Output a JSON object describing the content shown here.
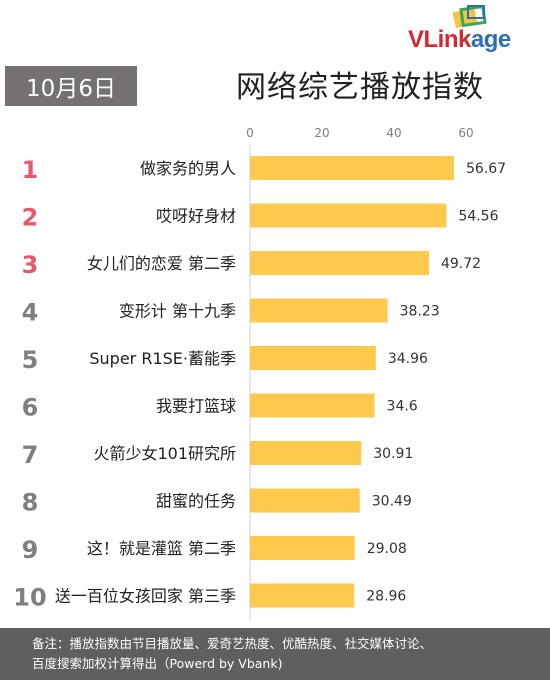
{
  "brand": {
    "part1": "VLink",
    "part2": "age",
    "colors": [
      "#d7262e",
      "#2d6fb5",
      "#f4c542",
      "#3aa655"
    ]
  },
  "date_label": "10月6日",
  "chart_data": {
    "type": "bar",
    "orientation": "horizontal",
    "title": "网络综艺播放指数",
    "ranks": [
      "1",
      "2",
      "3",
      "4",
      "5",
      "6",
      "7",
      "8",
      "9",
      "10"
    ],
    "categories": [
      "做家务的男人",
      "哎呀好身材",
      "女儿们的恋爱 第二季",
      "变形计 第十九季",
      "Super R1SE·蓄能季",
      "我要打篮球",
      "火箭少女101研究所",
      "甜蜜的任务",
      "这！就是灌篮 第二季",
      "送一百位女孩回家 第三季"
    ],
    "values": [
      56.67,
      54.56,
      49.72,
      38.23,
      34.96,
      34.6,
      30.91,
      30.49,
      29.08,
      28.96
    ],
    "value_labels": [
      "56.67",
      "54.56",
      "49.72",
      "38.23",
      "34.96",
      "34.6",
      "30.91",
      "30.49",
      "29.08",
      "28.96"
    ],
    "xticks": [
      "0",
      "20",
      "40",
      "60"
    ],
    "xlim": [
      0,
      60
    ],
    "grid": false,
    "legend": "none",
    "bar_color": "#ffc94d",
    "rank_colors": {
      "top3": "#e8596b",
      "rest": "#7f7f7f"
    }
  },
  "footer": {
    "line1": "备注：播放指数由节目播放量、爱奇艺热度、优酷热度、社交媒体讨论、",
    "line2": "百度搜索加权计算得出（Powerd by Vbank)"
  }
}
